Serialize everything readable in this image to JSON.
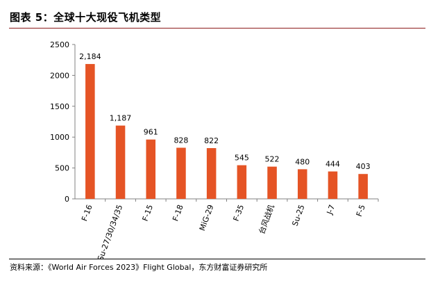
{
  "figure": {
    "title": "图表 5：全球十大现役飞机类型",
    "source": "资料来源：《World Air Forces 2023》Flight Global，东方财富证券研究所"
  },
  "colors": {
    "bar": "#e55425",
    "axis": "#808080"
  },
  "chart_data": {
    "type": "bar",
    "title": "",
    "xlabel": "",
    "ylabel": "",
    "ylim": [
      0,
      2500
    ],
    "yticks": [
      0,
      500,
      1000,
      1500,
      2000,
      2500
    ],
    "grid": false,
    "legend": "none",
    "categories": [
      "F-16",
      "Su-27/30/34/35",
      "F-15",
      "F-18",
      "MiG-29",
      "F-35",
      "台风战机",
      "Su-25",
      "J-7",
      "F-5"
    ],
    "values": [
      2184,
      1187,
      961,
      828,
      822,
      545,
      522,
      480,
      444,
      403
    ],
    "value_labels": [
      "2,184",
      "1,187",
      "961",
      "828",
      "822",
      "545",
      "522",
      "480",
      "444",
      "403"
    ]
  }
}
